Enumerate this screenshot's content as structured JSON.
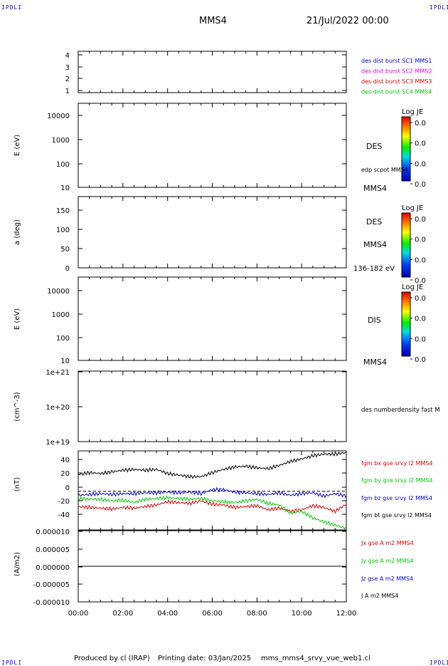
{
  "header": {
    "corner_left_top": "IPDLI",
    "corner_right_top": "IPDLI",
    "corner_left_bottom": "IPDLI",
    "corner_right_bottom": "IPDLI",
    "spacecraft": "MMS4",
    "date": "21/Jul/2022 00:00"
  },
  "footer": {
    "produced": "Produced by cl (IRAP)",
    "printing": "Printing date: 03/Jan/2025",
    "file": "mms_mms4_srvy_vue_web1.cl"
  },
  "colors": {
    "black": "#000000",
    "blue": "#0000cc",
    "red": "#dd0000",
    "green": "#00cc00",
    "magenta": "#dd00dd"
  },
  "chart_data": [
    {
      "type": "line",
      "panel": "burst-flags",
      "ylim": [
        0.5,
        4.5
      ],
      "yticks": [
        "1",
        "2",
        "3",
        "4"
      ],
      "side_labels": [
        {
          "text": "des dist burst SC1 MMS1",
          "color": "#0000cc"
        },
        {
          "text": "des dist burst SC2 MMS2",
          "color": "#dd00dd"
        },
        {
          "text": "des dist burst SC3 MMS3",
          "color": "#dd0000"
        },
        {
          "text": "des dist burst SC4 MMS4",
          "color": "#00cc00"
        }
      ]
    },
    {
      "type": "heatmap",
      "panel": "des-energy-spectrogram",
      "scale": "log",
      "ylim": [
        10,
        20000
      ],
      "yticks": [
        "10",
        "100",
        "1000",
        "10000"
      ],
      "ylabel": "E (eV)",
      "colorbar": {
        "label": "Log JE",
        "ticks": [
          "0.0",
          "0.0",
          "0.0",
          "0.0"
        ]
      },
      "side_labels": [
        "DES",
        "edp scpot MMS4",
        "MMS4"
      ]
    },
    {
      "type": "heatmap",
      "panel": "des-pitch-angle",
      "ylim": [
        0,
        180
      ],
      "yticks": [
        "0",
        "50",
        "100",
        "150"
      ],
      "ylabel": "a (deg)",
      "colorbar": {
        "label": "Log JE",
        "ticks": [
          "0.0",
          "0.0",
          "0.0",
          "0.0"
        ]
      },
      "side_labels": [
        "DES",
        "MMS4",
        "136-182 eV"
      ]
    },
    {
      "type": "heatmap",
      "panel": "dis-energy-spectrogram",
      "scale": "log",
      "ylim": [
        10,
        20000
      ],
      "yticks": [
        "10",
        "100",
        "1000",
        "10000"
      ],
      "ylabel": "E (eV)",
      "colorbar": {
        "label": "Log JE",
        "ticks": [
          "0.0",
          "0.0",
          "0.0",
          "0.0"
        ]
      },
      "side_labels": [
        "DIS",
        "MMS4"
      ]
    },
    {
      "type": "line",
      "panel": "number-density",
      "scale": "log",
      "ylim": [
        1e+19,
        1e+21
      ],
      "yticks": [
        "1e+19",
        "1e+20",
        "1e+21"
      ],
      "ylabel": "(cm^-3)",
      "side_labels": [
        {
          "text": "des numberdensity fast M",
          "color": "#000000"
        }
      ]
    },
    {
      "type": "line",
      "panel": "magnetic-field",
      "ylim": [
        -48,
        50
      ],
      "yticks": [
        "-40",
        "-20",
        "0",
        "20",
        "40"
      ],
      "ylabel": "(nT)",
      "x": [
        0,
        0.5,
        1,
        1.5,
        2,
        2.5,
        3,
        3.5,
        4,
        4.5,
        5,
        5.5,
        6,
        6.5,
        7,
        7.5,
        8,
        8.5,
        9,
        9.5,
        10,
        10.5,
        11,
        11.5,
        12
      ],
      "series": [
        {
          "name": "fgm bx gse srvy l2 MMS4",
          "color": "#dd0000",
          "values": [
            -19,
            -20,
            -21,
            -22,
            -20,
            -21,
            -19,
            -17,
            -13,
            -14,
            -15,
            -12,
            -16,
            -17,
            -20,
            -19,
            -18,
            -23,
            -21,
            -25,
            -23,
            -18,
            -20,
            -25,
            -16
          ]
        },
        {
          "name": "fgm by gse srvy l2 MMS4",
          "color": "#00cc00",
          "values": [
            -9,
            -10,
            -10,
            -12,
            -11,
            -14,
            -10,
            -9,
            -8,
            -9,
            -10,
            -9,
            -12,
            -13,
            -14,
            -12,
            -10,
            -15,
            -17,
            -27,
            -25,
            -33,
            -38,
            -42,
            -46
          ]
        },
        {
          "name": "fgm bz gse srvy l2 MMS4",
          "color": "#0000cc",
          "values": [
            -5,
            -4,
            -3,
            -4,
            -3,
            -3,
            -2,
            -2,
            -1,
            -2,
            -1,
            -3,
            2,
            2,
            -1,
            -2,
            -3,
            -4,
            -2,
            -5,
            -3,
            -2,
            -6,
            -3,
            -6
          ]
        },
        {
          "name": "fgm bt gse srvy l2 MMS4",
          "color": "#000000",
          "values": [
            21,
            23,
            22,
            24,
            26,
            27,
            26,
            27,
            22,
            20,
            18,
            18,
            23,
            27,
            30,
            31,
            29,
            28,
            32,
            37,
            40,
            44,
            46,
            46,
            48
          ]
        }
      ],
      "reference_line": 0
    },
    {
      "type": "line",
      "panel": "current-density",
      "ylim": [
        -1e-05,
        1e-05
      ],
      "yticks": [
        "-0.000010",
        "-0.000005",
        "0.000000",
        "0.000005",
        "0.000010"
      ],
      "ylabel": "(A/m2)",
      "xlim": [
        0,
        12
      ],
      "xticks": [
        "00:00",
        "02:00",
        "04:00",
        "06:00",
        "08:00",
        "10:00",
        "12:00"
      ],
      "x": [
        0,
        12
      ],
      "series": [
        {
          "name": "Jx gse A m2 MMS4",
          "color": "#dd0000",
          "values": [
            0,
            0
          ]
        },
        {
          "name": "Jy gse A m2 MMS4",
          "color": "#00cc00",
          "values": [
            0,
            0
          ]
        },
        {
          "name": "Jz gse A m2 MMS4",
          "color": "#0000cc",
          "values": [
            0,
            0
          ]
        },
        {
          "name": "J A m2 MMS4",
          "color": "#000000",
          "values": [
            0,
            0
          ]
        }
      ]
    }
  ]
}
